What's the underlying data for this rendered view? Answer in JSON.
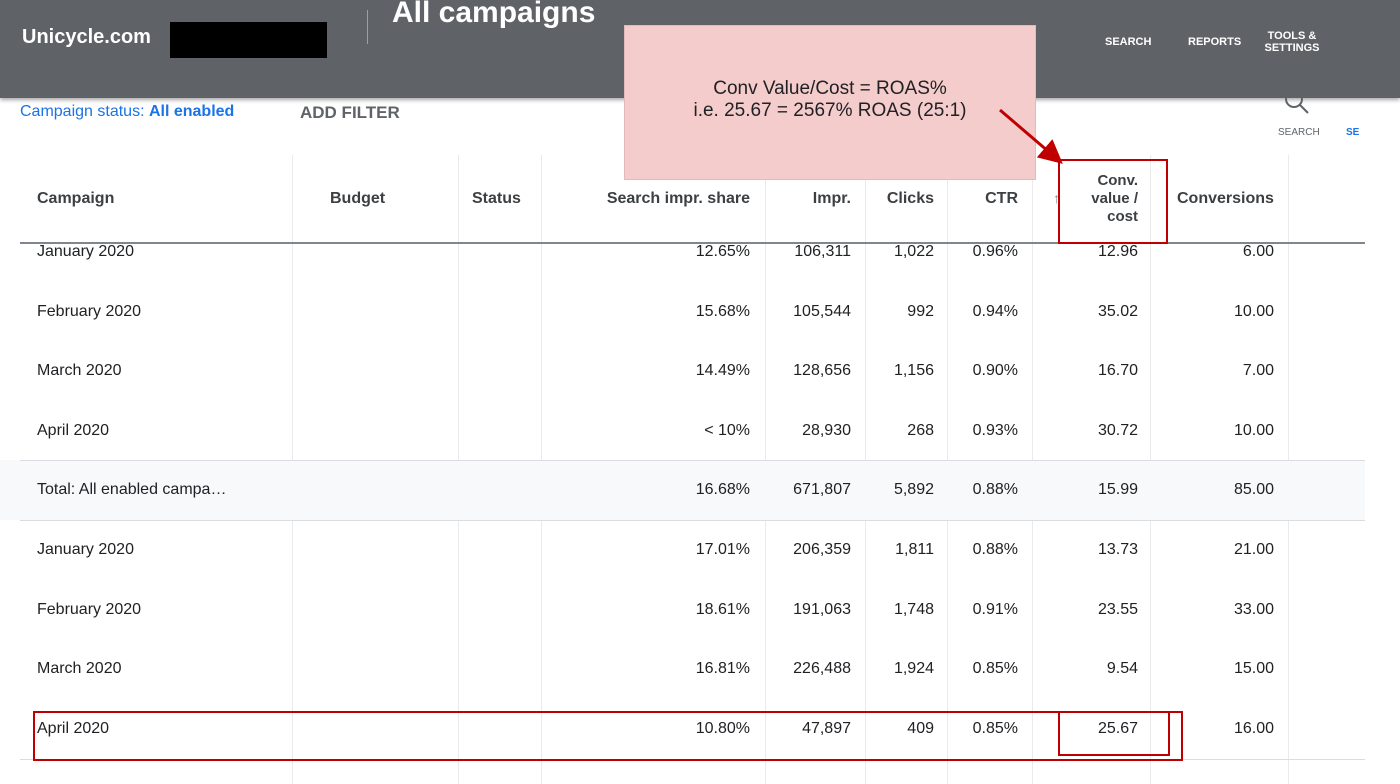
{
  "header": {
    "brand": "Unicycle.com",
    "title": "All campaigns",
    "nav": [
      "SEARCH",
      "REPORTS",
      "TOOLS & SETTINGS"
    ]
  },
  "filter": {
    "label": "Campaign status:",
    "value": "All enabled",
    "add": "ADD FILTER"
  },
  "toolbar": {
    "search": "SEARCH",
    "clipped": "SE"
  },
  "annotation": {
    "lines": [
      "Conv Value/Cost = ROAS%",
      "i.e. 25.67 = 2567% ROAS (25:1)"
    ]
  },
  "table": {
    "columns": [
      "Campaign",
      "Budget",
      "Status",
      "Search impr. share",
      "Impr.",
      "Clicks",
      "CTR",
      "Conv. value / cost",
      "Conversions"
    ],
    "rows": [
      {
        "campaign": "January 2020",
        "search_impr_share": "12.65%",
        "impr": "106,311",
        "clicks": "1,022",
        "ctr": "0.96%",
        "conv_value_cost": "12.96",
        "conversions": "6.00"
      },
      {
        "campaign": "February 2020",
        "search_impr_share": "15.68%",
        "impr": "105,544",
        "clicks": "992",
        "ctr": "0.94%",
        "conv_value_cost": "35.02",
        "conversions": "10.00"
      },
      {
        "campaign": "March 2020",
        "search_impr_share": "14.49%",
        "impr": "128,656",
        "clicks": "1,156",
        "ctr": "0.90%",
        "conv_value_cost": "16.70",
        "conversions": "7.00"
      },
      {
        "campaign": "April 2020",
        "search_impr_share": "< 10%",
        "impr": "28,930",
        "clicks": "268",
        "ctr": "0.93%",
        "conv_value_cost": "30.72",
        "conversions": "10.00"
      },
      {
        "campaign": "Total: All enabled campa…",
        "search_impr_share": "16.68%",
        "impr": "671,807",
        "clicks": "5,892",
        "ctr": "0.88%",
        "conv_value_cost": "15.99",
        "conversions": "85.00"
      },
      {
        "campaign": "January 2020",
        "search_impr_share": "17.01%",
        "impr": "206,359",
        "clicks": "1,811",
        "ctr": "0.88%",
        "conv_value_cost": "13.73",
        "conversions": "21.00"
      },
      {
        "campaign": "February 2020",
        "search_impr_share": "18.61%",
        "impr": "191,063",
        "clicks": "1,748",
        "ctr": "0.91%",
        "conv_value_cost": "23.55",
        "conversions": "33.00"
      },
      {
        "campaign": "March 2020",
        "search_impr_share": "16.81%",
        "impr": "226,488",
        "clicks": "1,924",
        "ctr": "0.85%",
        "conv_value_cost": "9.54",
        "conversions": "15.00"
      },
      {
        "campaign": "April 2020",
        "search_impr_share": "10.80%",
        "impr": "47,897",
        "clicks": "409",
        "ctr": "0.85%",
        "conv_value_cost": "25.67",
        "conversions": "16.00"
      }
    ]
  }
}
